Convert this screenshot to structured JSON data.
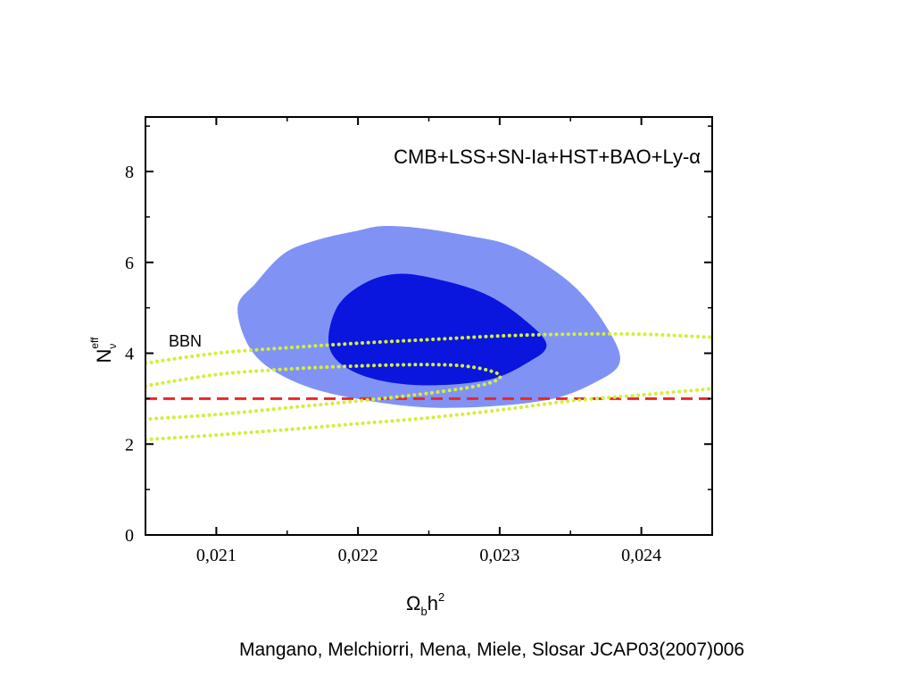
{
  "chart_data": {
    "type": "contour",
    "annotation": "CMB+LSS+SN-Ia+HST+BAO+Ly-α",
    "xlim": [
      0.0205,
      0.0245
    ],
    "ylim": [
      0,
      9.2
    ],
    "xticks": [
      0.021,
      0.022,
      0.023,
      0.024
    ],
    "xtick_labels": [
      "0,021",
      "0,022",
      "0,023",
      "0,024"
    ],
    "yticks": [
      0,
      2,
      4,
      6,
      8
    ],
    "ytick_labels": [
      "0",
      "2",
      "4",
      "6",
      "8"
    ],
    "xlabel": {
      "main": "Ω",
      "sub": "b",
      "rest": "h",
      "sup": "2"
    },
    "ylabel": {
      "main": "N",
      "sub": "ν",
      "sup": "eff"
    },
    "colors": {
      "outer_contour": "#8093f5",
      "inner_contour": "#0a16de",
      "bbn_curves": "#d2ef3c",
      "reference_line": "#e8282a"
    },
    "contours": [
      {
        "level": "outer",
        "points": [
          [
            0.02128,
            5.55
          ],
          [
            0.02148,
            6.2
          ],
          [
            0.02172,
            6.5
          ],
          [
            0.022,
            6.7
          ],
          [
            0.02218,
            6.8
          ],
          [
            0.02245,
            6.75
          ],
          [
            0.02275,
            6.6
          ],
          [
            0.02305,
            6.4
          ],
          [
            0.0233,
            6.0
          ],
          [
            0.02355,
            5.4
          ],
          [
            0.02375,
            4.6
          ],
          [
            0.02385,
            3.85
          ],
          [
            0.0237,
            3.4
          ],
          [
            0.0233,
            2.95
          ],
          [
            0.02255,
            2.8
          ],
          [
            0.0219,
            3.05
          ],
          [
            0.0215,
            3.45
          ],
          [
            0.02125,
            4.05
          ],
          [
            0.02115,
            5.0
          ]
        ]
      },
      {
        "level": "inner",
        "points": [
          [
            0.02185,
            5.0
          ],
          [
            0.02205,
            5.55
          ],
          [
            0.0223,
            5.75
          ],
          [
            0.0226,
            5.6
          ],
          [
            0.0229,
            5.3
          ],
          [
            0.02315,
            4.8
          ],
          [
            0.02333,
            4.2
          ],
          [
            0.0232,
            3.8
          ],
          [
            0.0229,
            3.4
          ],
          [
            0.0224,
            3.3
          ],
          [
            0.022,
            3.55
          ],
          [
            0.0218,
            4.1
          ]
        ]
      }
    ],
    "bbn": {
      "label": "BBN",
      "curves": [
        {
          "points": [
            [
              0.0205,
              3.78
            ],
            [
              0.021,
              4.0
            ],
            [
              0.0215,
              4.12
            ],
            [
              0.022,
              4.22
            ],
            [
              0.0225,
              4.3
            ],
            [
              0.023,
              4.38
            ],
            [
              0.0235,
              4.42
            ],
            [
              0.024,
              4.42
            ],
            [
              0.0245,
              4.35
            ]
          ]
        },
        {
          "points": [
            [
              0.0205,
              3.28
            ],
            [
              0.021,
              3.53
            ],
            [
              0.0215,
              3.65
            ],
            [
              0.022,
              3.72
            ],
            [
              0.0225,
              3.75
            ],
            [
              0.0228,
              3.7
            ],
            [
              0.023,
              3.52
            ],
            [
              0.0229,
              3.32
            ],
            [
              0.0225,
              3.12
            ],
            [
              0.022,
              2.95
            ],
            [
              0.0215,
              2.8
            ],
            [
              0.021,
              2.65
            ],
            [
              0.0205,
              2.55
            ]
          ]
        },
        {
          "points": [
            [
              0.0205,
              2.1
            ],
            [
              0.021,
              2.2
            ],
            [
              0.0215,
              2.32
            ],
            [
              0.022,
              2.45
            ],
            [
              0.0225,
              2.58
            ],
            [
              0.023,
              2.75
            ],
            [
              0.0235,
              2.95
            ],
            [
              0.024,
              3.08
            ],
            [
              0.0245,
              3.22
            ]
          ]
        }
      ]
    },
    "reference_line": {
      "y": 3.0
    }
  },
  "citation": "Mangano, Melchiorri, Mena, Miele, Slosar JCAP03(2007)006"
}
